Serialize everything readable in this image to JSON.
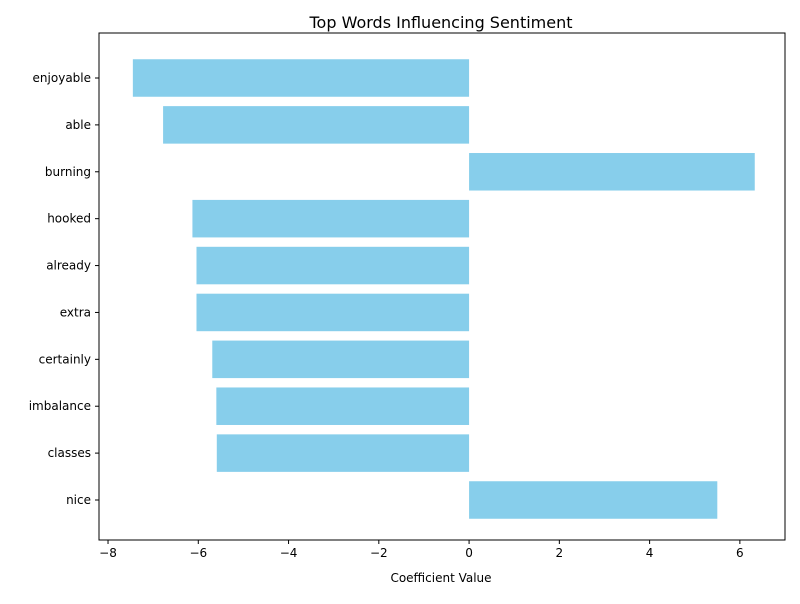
{
  "chart_data": {
    "type": "bar",
    "orientation": "horizontal",
    "title": "Top Words Influencing Sentiment",
    "xlabel": "Coefficient Value",
    "ylabel": "",
    "categories": [
      "enjoyable",
      "able",
      "burning",
      "hooked",
      "already",
      "extra",
      "certainly",
      "imbalance",
      "classes",
      "nice"
    ],
    "values": [
      -7.45,
      -6.78,
      6.33,
      -6.13,
      -6.04,
      -6.04,
      -5.69,
      -5.6,
      -5.59,
      5.5
    ],
    "xlim": [
      -8.2,
      7.0
    ],
    "x_ticks": [
      -8,
      -6,
      -4,
      -2,
      0,
      2,
      4,
      6
    ],
    "x_tick_labels": [
      "−8",
      "−6",
      "−4",
      "−2",
      "0",
      "2",
      "4",
      "6"
    ],
    "bar_color": "#87ceeb",
    "grid": false,
    "legend": "none"
  }
}
